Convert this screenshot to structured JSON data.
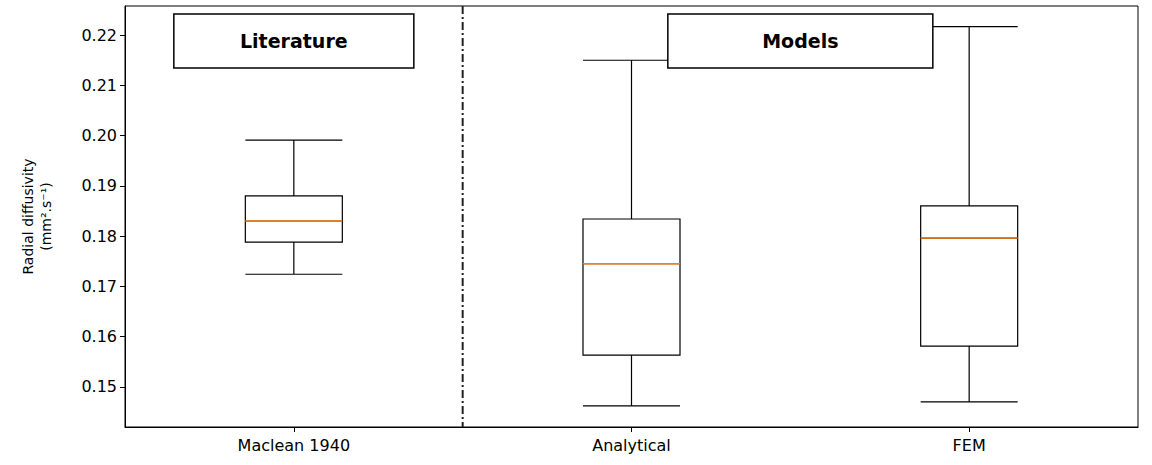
{
  "chart_data": {
    "type": "boxplot",
    "y_label": "Radial diffusivity\n(mm².s⁻¹)",
    "categories": [
      "Maclean 1940",
      "Analytical",
      "FEM"
    ],
    "boxes": [
      {
        "min": 0.1724,
        "q1": 0.1788,
        "median": 0.183,
        "q3": 0.188,
        "max": 0.1991
      },
      {
        "min": 0.1462,
        "q1": 0.1563,
        "median": 0.1745,
        "q3": 0.1834,
        "max": 0.215
      },
      {
        "min": 0.147,
        "q1": 0.1581,
        "median": 0.1796,
        "q3": 0.186,
        "max": 0.2217
      }
    ],
    "annotations": [
      "Literature",
      "Models"
    ],
    "color": "#000000",
    "ylim": [
      0.142,
      0.2258
    ],
    "yticks": [
      0.15,
      0.16,
      0.17,
      0.18,
      0.19,
      {
        "value": 0.2,
        "label": "0.20"
      },
      0.21,
      0.22
    ],
    "grid": false
  }
}
